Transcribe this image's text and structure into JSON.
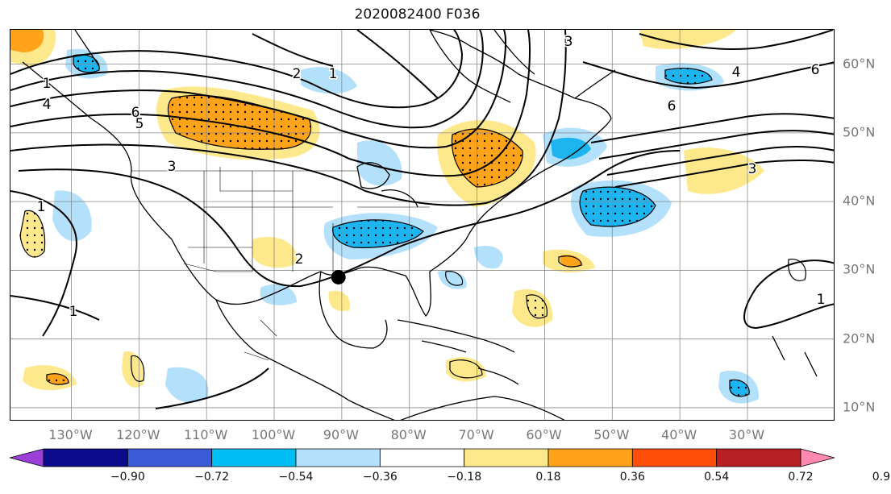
{
  "title": "2020082400 F036",
  "map": {
    "lon_range": [
      -139,
      -17
    ],
    "lat_range": [
      8,
      65
    ],
    "lat_ticks": [
      "60°N",
      "50°N",
      "40°N",
      "30°N",
      "20°N",
      "10°N"
    ],
    "lon_ticks": [
      "130°W",
      "120°W",
      "110°W",
      "100°W",
      "90°W",
      "80°W",
      "70°W",
      "60°W",
      "50°W",
      "40°W",
      "30°W"
    ],
    "marker": {
      "name": "storm-location",
      "lon": -90.5,
      "lat": 29
    },
    "contour_labels": [
      "1",
      "2",
      "3",
      "4",
      "5",
      "6"
    ],
    "colors": {
      "positive_light": "#fde98c",
      "positive_mid": "#ffa31a",
      "negative_light": "#b3e0fa",
      "negative_mid": "#1eb4f0",
      "contour": "#000000",
      "grid": "#8a8a8a",
      "coast": "#000000"
    }
  },
  "colorbar": {
    "ticks": [
      "−0.90",
      "−0.72",
      "−0.54",
      "−0.36",
      "−0.18",
      "0.18",
      "0.36",
      "0.54",
      "0.72",
      "0.90"
    ],
    "colors": [
      "#9b3fd6",
      "#0b0b8c",
      "#3a5bd8",
      "#00bff5",
      "#b3e0fa",
      "#ffffff",
      "#fde98c",
      "#ffa31a",
      "#ff4d0a",
      "#b81f24",
      "#ff8ab0"
    ]
  }
}
